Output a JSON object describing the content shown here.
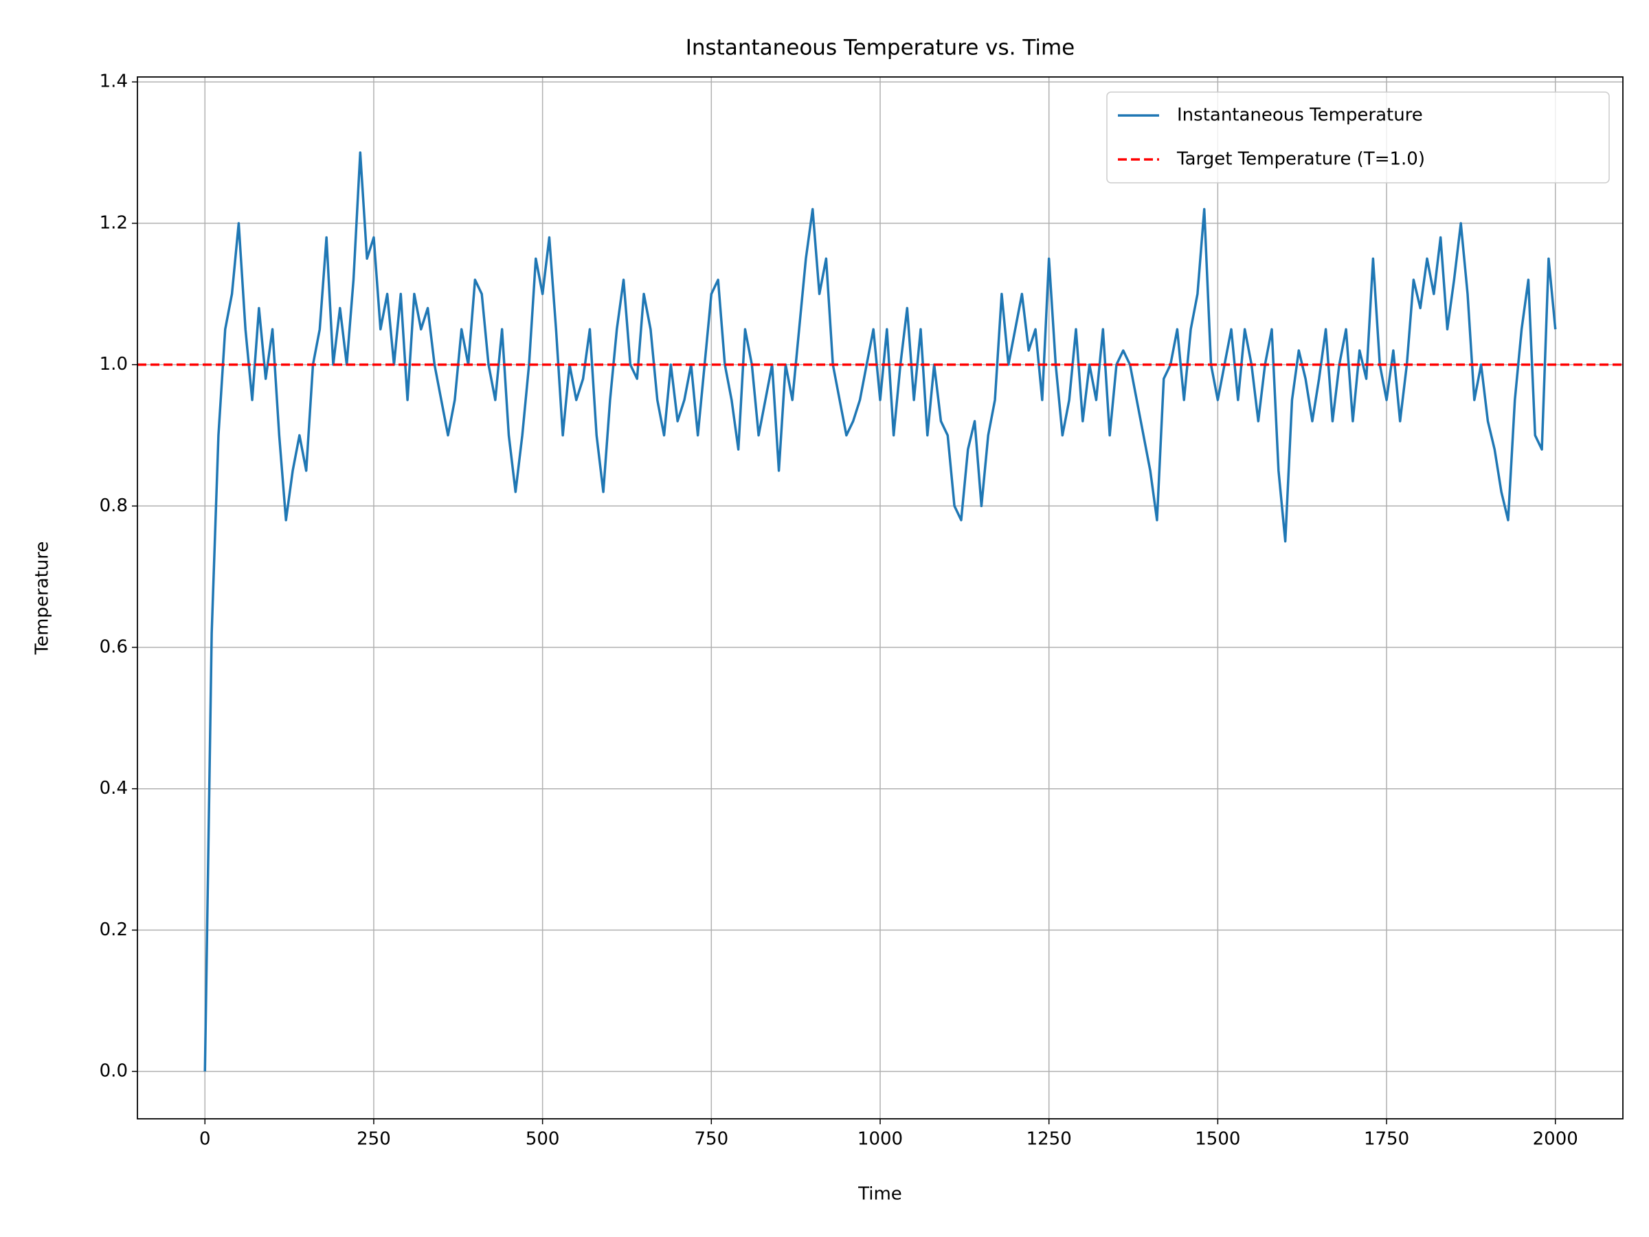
{
  "chart_data": {
    "type": "line",
    "title": "Instantaneous Temperature vs. Time",
    "x_label": "Time",
    "y_label": "Temperature",
    "x": [
      0,
      10,
      20,
      30,
      40,
      50,
      60,
      70,
      80,
      90,
      100,
      110,
      120,
      130,
      140,
      150,
      160,
      170,
      180,
      190,
      200,
      210,
      220,
      230,
      240,
      250,
      260,
      270,
      280,
      290,
      300,
      310,
      320,
      330,
      340,
      350,
      360,
      370,
      380,
      390,
      400,
      410,
      420,
      430,
      440,
      450,
      460,
      470,
      480,
      490,
      500,
      510,
      520,
      530,
      540,
      550,
      560,
      570,
      580,
      590,
      600,
      610,
      620,
      630,
      640,
      650,
      660,
      670,
      680,
      690,
      700,
      710,
      720,
      730,
      740,
      750,
      760,
      770,
      780,
      790,
      800,
      810,
      820,
      830,
      840,
      850,
      860,
      870,
      880,
      890,
      900,
      910,
      920,
      930,
      940,
      950,
      960,
      970,
      980,
      990,
      1000,
      1010,
      1020,
      1030,
      1040,
      1050,
      1060,
      1070,
      1080,
      1090,
      1100,
      1110,
      1120,
      1130,
      1140,
      1150,
      1160,
      1170,
      1180,
      1190,
      1200,
      1210,
      1220,
      1230,
      1240,
      1250,
      1260,
      1270,
      1280,
      1290,
      1300,
      1310,
      1320,
      1330,
      1340,
      1350,
      1360,
      1370,
      1380,
      1390,
      1400,
      1410,
      1420,
      1430,
      1440,
      1450,
      1460,
      1470,
      1480,
      1490,
      1500,
      1510,
      1520,
      1530,
      1540,
      1550,
      1560,
      1570,
      1580,
      1590,
      1600,
      1610,
      1620,
      1630,
      1640,
      1650,
      1660,
      1670,
      1680,
      1690,
      1700,
      1710,
      1720,
      1730,
      1740,
      1750,
      1760,
      1770,
      1780,
      1790,
      1800,
      1810,
      1820,
      1830,
      1840,
      1850,
      1860,
      1870,
      1880,
      1890,
      1900,
      1910,
      1920,
      1930,
      1940,
      1950,
      1960,
      1970,
      1980,
      1990,
      2000
    ],
    "series": [
      {
        "name": "Instantaneous Temperature",
        "color": "#1f77b4",
        "values": [
          0.0,
          0.62,
          0.9,
          1.05,
          1.1,
          1.2,
          1.05,
          0.95,
          1.08,
          0.98,
          1.05,
          0.9,
          0.78,
          0.85,
          0.9,
          0.85,
          1.0,
          1.05,
          1.18,
          1.0,
          1.08,
          1.0,
          1.12,
          1.3,
          1.15,
          1.18,
          1.05,
          1.1,
          1.0,
          1.1,
          0.95,
          1.1,
          1.05,
          1.08,
          1.0,
          0.95,
          0.9,
          0.95,
          1.05,
          1.0,
          1.12,
          1.1,
          1.0,
          0.95,
          1.05,
          0.9,
          0.82,
          0.9,
          1.0,
          1.15,
          1.1,
          1.18,
          1.05,
          0.9,
          1.0,
          0.95,
          0.98,
          1.05,
          0.9,
          0.82,
          0.95,
          1.05,
          1.12,
          1.0,
          0.98,
          1.1,
          1.05,
          0.95,
          0.9,
          1.0,
          0.92,
          0.95,
          1.0,
          0.9,
          1.0,
          1.1,
          1.12,
          1.0,
          0.95,
          0.88,
          1.05,
          1.0,
          0.9,
          0.95,
          1.0,
          0.85,
          1.0,
          0.95,
          1.05,
          1.15,
          1.22,
          1.1,
          1.15,
          1.0,
          0.95,
          0.9,
          0.92,
          0.95,
          1.0,
          1.05,
          0.95,
          1.05,
          0.9,
          1.0,
          1.08,
          0.95,
          1.05,
          0.9,
          1.0,
          0.92,
          0.9,
          0.8,
          0.78,
          0.88,
          0.92,
          0.8,
          0.9,
          0.95,
          1.1,
          1.0,
          1.05,
          1.1,
          1.02,
          1.05,
          0.95,
          1.15,
          1.0,
          0.9,
          0.95,
          1.05,
          0.92,
          1.0,
          0.95,
          1.05,
          0.9,
          1.0,
          1.02,
          1.0,
          0.95,
          0.9,
          0.85,
          0.78,
          0.98,
          1.0,
          1.05,
          0.95,
          1.05,
          1.1,
          1.22,
          1.0,
          0.95,
          1.0,
          1.05,
          0.95,
          1.05,
          1.0,
          0.92,
          1.0,
          1.05,
          0.85,
          0.75,
          0.95,
          1.02,
          0.98,
          0.92,
          0.98,
          1.05,
          0.92,
          1.0,
          1.05,
          0.92,
          1.02,
          0.98,
          1.15,
          1.0,
          0.95,
          1.02,
          0.92,
          1.0,
          1.12,
          1.08,
          1.15,
          1.1,
          1.18,
          1.05,
          1.12,
          1.2,
          1.1,
          0.95,
          1.0,
          0.92,
          0.88,
          0.82,
          0.78,
          0.95,
          1.05,
          1.12,
          0.9,
          0.88,
          1.15,
          1.05
        ]
      }
    ],
    "hline": {
      "name": "Target Temperature (T=1.0)",
      "color": "#ff0000",
      "value": 1.0
    },
    "xlim": [
      -100,
      2100
    ],
    "ylim": [
      -0.067,
      1.407
    ],
    "xticks": [
      0,
      250,
      500,
      750,
      1000,
      1250,
      1500,
      1750,
      2000
    ],
    "yticks": [
      {
        "value": 0,
        "label": "0.0"
      },
      0.2,
      0.4,
      0.6,
      0.8,
      {
        "value": 1,
        "label": "1.0"
      },
      1.2,
      1.4
    ],
    "grid": true,
    "legend": "upper right"
  }
}
